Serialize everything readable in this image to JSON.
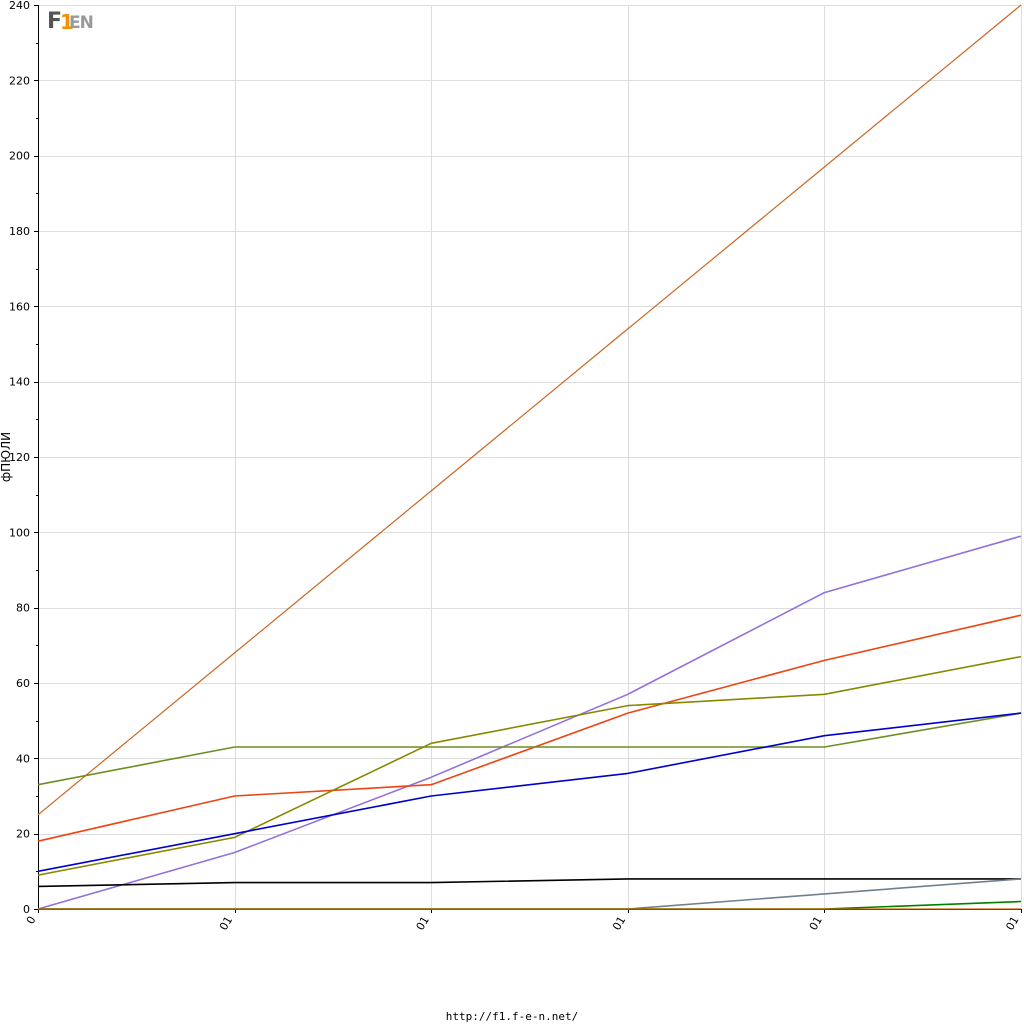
{
  "logo": {
    "f": "F",
    "one": "1",
    "en": "EN",
    "name": "f1-e-n-logo"
  },
  "footer": {
    "url": "http://f1.f-e-n.net/"
  },
  "chart_data": {
    "type": "line",
    "title": "",
    "xlabel": "",
    "ylabel": "фПЮЛИ",
    "categories": [
      "0",
      "01",
      "01",
      "01",
      "01",
      "01"
    ],
    "xlim": [
      0,
      5
    ],
    "ylim": [
      0,
      240
    ],
    "y_ticks": [
      0,
      20,
      40,
      60,
      80,
      100,
      120,
      140,
      160,
      180,
      200,
      220,
      240
    ],
    "grid": true,
    "legend": "none",
    "series": [
      {
        "color": "#cc6622",
        "width": 1.2,
        "values": [
          25,
          68,
          111,
          154,
          197,
          240
        ]
      },
      {
        "color": "#9370db",
        "width": 1.6,
        "values": [
          0,
          15,
          35,
          57,
          84,
          99
        ]
      },
      {
        "color": "#ee4411",
        "width": 1.6,
        "values": [
          18,
          30,
          33,
          52,
          66,
          78
        ]
      },
      {
        "color": "#888800",
        "width": 1.6,
        "values": [
          9,
          19,
          44,
          54,
          57,
          67
        ]
      },
      {
        "color": "#6b8e23",
        "width": 1.6,
        "values": [
          33,
          43,
          43,
          43,
          43,
          52
        ]
      },
      {
        "color": "#0000cc",
        "width": 1.6,
        "values": [
          10,
          20,
          30,
          36,
          46,
          52
        ]
      },
      {
        "color": "#000000",
        "width": 1.6,
        "values": [
          6,
          7,
          7,
          8,
          8,
          8
        ]
      },
      {
        "color": "#708090",
        "width": 1.6,
        "values": [
          0,
          0,
          0,
          0,
          4,
          8
        ]
      },
      {
        "color": "#008000",
        "width": 1.6,
        "values": [
          0,
          0,
          0,
          0,
          0,
          2
        ]
      },
      {
        "color": "#cc6600",
        "width": 1.2,
        "values": [
          0,
          0,
          0,
          0,
          0,
          0
        ]
      }
    ]
  }
}
